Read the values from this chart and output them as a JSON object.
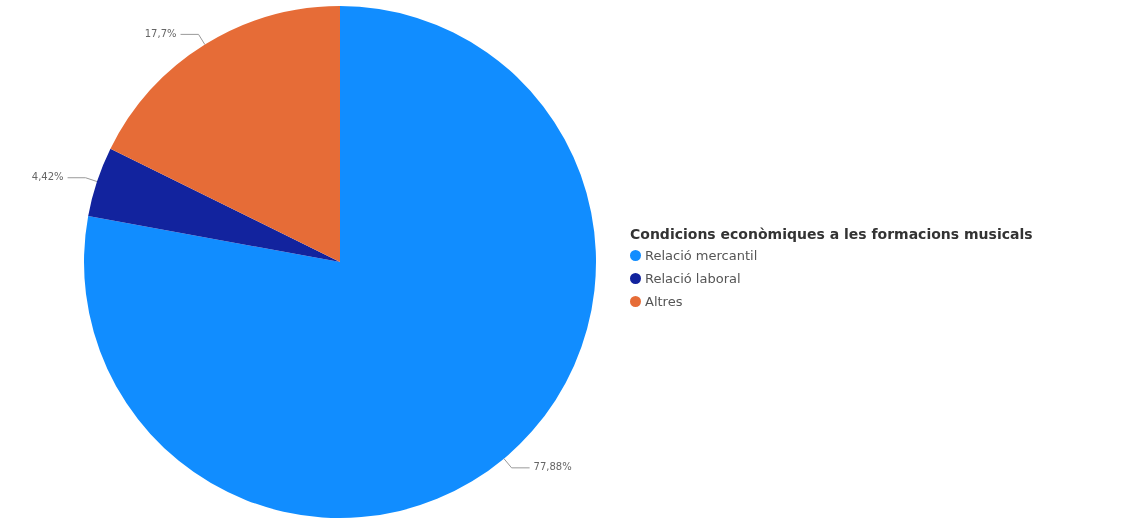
{
  "chart_data": {
    "type": "pie",
    "legend_title": "Condicions econòmiques a les formacions musicals",
    "categories": [
      "Relació mercantil",
      "Relació laboral",
      "Altres"
    ],
    "values": [
      77.88,
      4.42,
      17.7
    ],
    "colors": [
      "#118dff",
      "#12239e",
      "#e66c37"
    ],
    "value_labels": [
      "77,88%",
      "4,42%",
      "17,7%"
    ],
    "legend": "right"
  }
}
